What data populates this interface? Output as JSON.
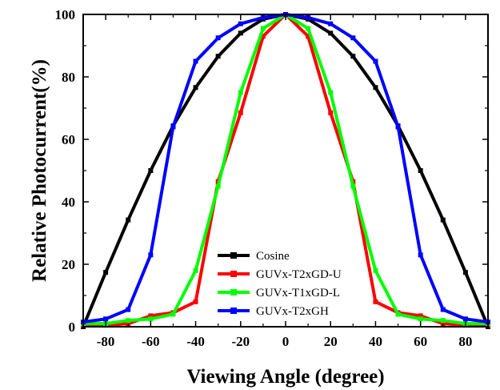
{
  "chart_data": {
    "type": "line",
    "xlabel": "Viewing Angle (degree)",
    "ylabel": "Relative Photocurrent(%)",
    "xlim": [
      -90,
      90
    ],
    "ylim": [
      0,
      100
    ],
    "xticks": [
      -80,
      -60,
      -40,
      -20,
      0,
      20,
      40,
      60,
      80
    ],
    "yticks": [
      0,
      20,
      40,
      60,
      80,
      100
    ],
    "grid": false,
    "legend_position": "bottom-center",
    "x": [
      -90,
      -80,
      -70,
      -60,
      -50,
      -40,
      -30,
      -20,
      -10,
      0,
      10,
      20,
      30,
      40,
      50,
      60,
      70,
      80,
      90
    ],
    "series": [
      {
        "name": "Cosine",
        "color": "#000000",
        "values": [
          0,
          17.4,
          34.2,
          50.0,
          64.3,
          76.6,
          86.6,
          94.0,
          98.5,
          100,
          98.5,
          94.0,
          86.6,
          76.6,
          64.3,
          50.0,
          34.2,
          17.4,
          0
        ]
      },
      {
        "name": "GUVx-T2xGD-U",
        "color": "#ff0000",
        "values": [
          0.5,
          0.5,
          1.0,
          3.5,
          4.5,
          8.0,
          46.5,
          68.5,
          93.0,
          100,
          93.0,
          68.5,
          46.5,
          8.0,
          4.5,
          3.5,
          1.0,
          0.5,
          0.5
        ]
      },
      {
        "name": "GUVx-T1xGD-L",
        "color": "#00ff00",
        "values": [
          1.0,
          1.0,
          2.0,
          2.5,
          4.0,
          18.0,
          45.0,
          75.0,
          95.5,
          100,
          95.5,
          75.0,
          45.0,
          18.0,
          4.0,
          2.5,
          2.0,
          1.0,
          1.0
        ]
      },
      {
        "name": "GUVx-T2xGH",
        "color": "#0000ff",
        "values": [
          1.5,
          2.5,
          5.5,
          23.0,
          64.0,
          85.0,
          92.5,
          97.0,
          99.0,
          100,
          99.0,
          97.0,
          92.5,
          85.0,
          64.0,
          23.0,
          5.5,
          2.5,
          1.5
        ]
      }
    ]
  }
}
